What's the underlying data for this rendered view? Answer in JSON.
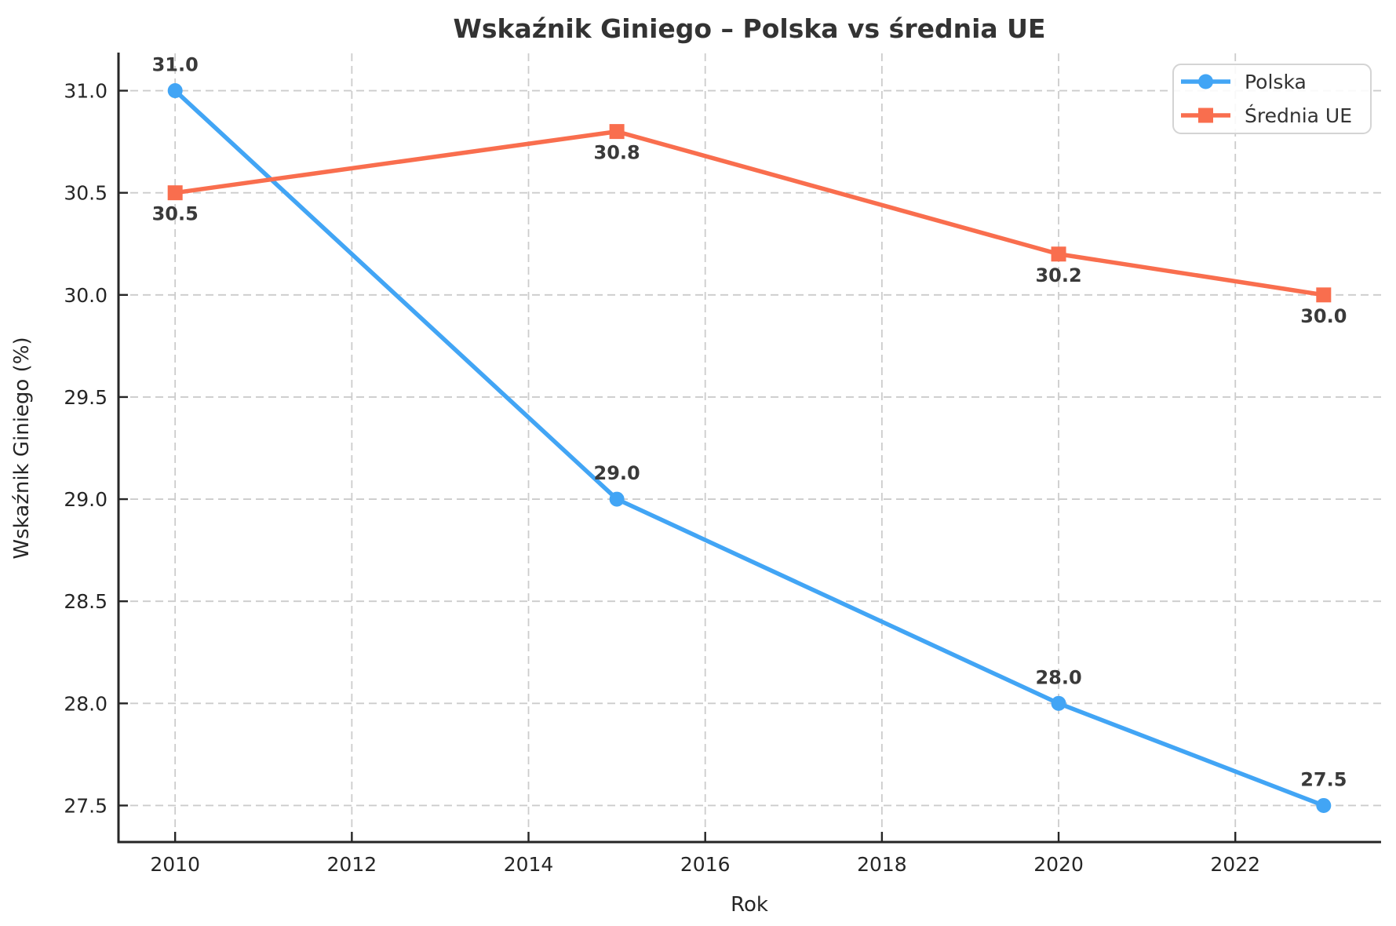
{
  "title": "Wskaźnik Giniego – Polska vs średnia UE",
  "chart_data": {
    "type": "line",
    "title": "Wskaźnik Giniego – Polska vs średnia UE",
    "xlabel": "Rok",
    "ylabel": "Wskaźnik Giniego (%)",
    "x": [
      2010,
      2015,
      2020,
      2023
    ],
    "series": [
      {
        "name": "Polska",
        "values": [
          31.0,
          29.0,
          28.0,
          27.5
        ],
        "color": "#42A5F5",
        "marker": "circle",
        "label_position": "above",
        "label_dy": -25
      },
      {
        "name": "Średnia UE",
        "values": [
          30.5,
          30.8,
          30.2,
          30.0
        ],
        "color": "#F96E4E",
        "marker": "square",
        "label_position": "below",
        "label_dy": 35
      }
    ],
    "xticks": [
      2010,
      2012,
      2014,
      2016,
      2018,
      2020,
      2022
    ],
    "yticks": [
      27.5,
      28.0,
      28.5,
      29.0,
      29.5,
      30.0,
      30.5,
      31.0
    ],
    "xlim": [
      2009.35,
      2023.65
    ],
    "ylim": [
      27.325,
      31.175
    ],
    "grid": true,
    "grid_style": "dashed",
    "legend_position": "upper right",
    "data_labels": true
  },
  "colors": {
    "background": "#ffffff",
    "grid": "#cccccc",
    "spine": "#262626",
    "text": "#333333",
    "polska": "#42A5F5",
    "srednia_ue": "#F96E4E"
  }
}
